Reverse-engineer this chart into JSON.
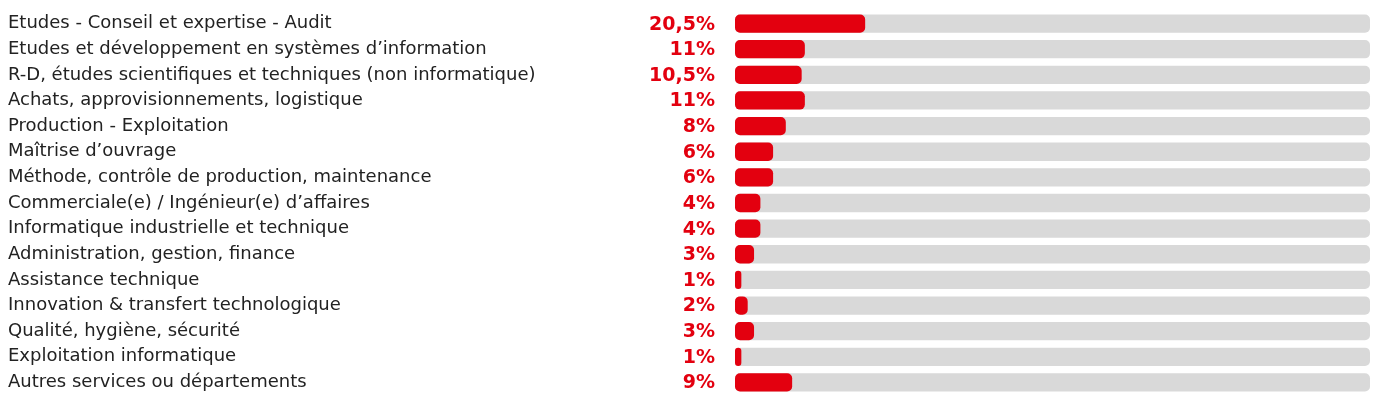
{
  "chart_data": {
    "type": "bar",
    "orientation": "horizontal",
    "categories": [
      "Etudes - Conseil et expertise - Audit",
      "Etudes et développement en systèmes d’information",
      "R-D, études scientifiques et techniques (non informatique)",
      "Achats, approvisionnements, logistique",
      "Production - Exploitation",
      "Maîtrise d’ouvrage",
      "Méthode, contrôle de production, maintenance",
      "Commerciale(e) / Ingénieur(e) d’affaires",
      "Informatique industrielle et technique",
      "Administration, gestion, finance",
      "Assistance technique",
      "Innovation & transfert technologique",
      "Qualité, hygiène, sécurité",
      "Exploitation informatique",
      "Autres services ou départements"
    ],
    "values": [
      20.5,
      11,
      10.5,
      11,
      8,
      6,
      6,
      4,
      4,
      3,
      1,
      2,
      3,
      1,
      9
    ],
    "value_labels": [
      "20,5%",
      "11%",
      "10,5%",
      "11%",
      "8%",
      "6%",
      "6%",
      "4%",
      "4%",
      "3%",
      "1%",
      "2%",
      "3%",
      "1%",
      "9%"
    ],
    "color": "#e3000f",
    "xlim": [
      0,
      100
    ],
    "tick_labels": "y"
  }
}
